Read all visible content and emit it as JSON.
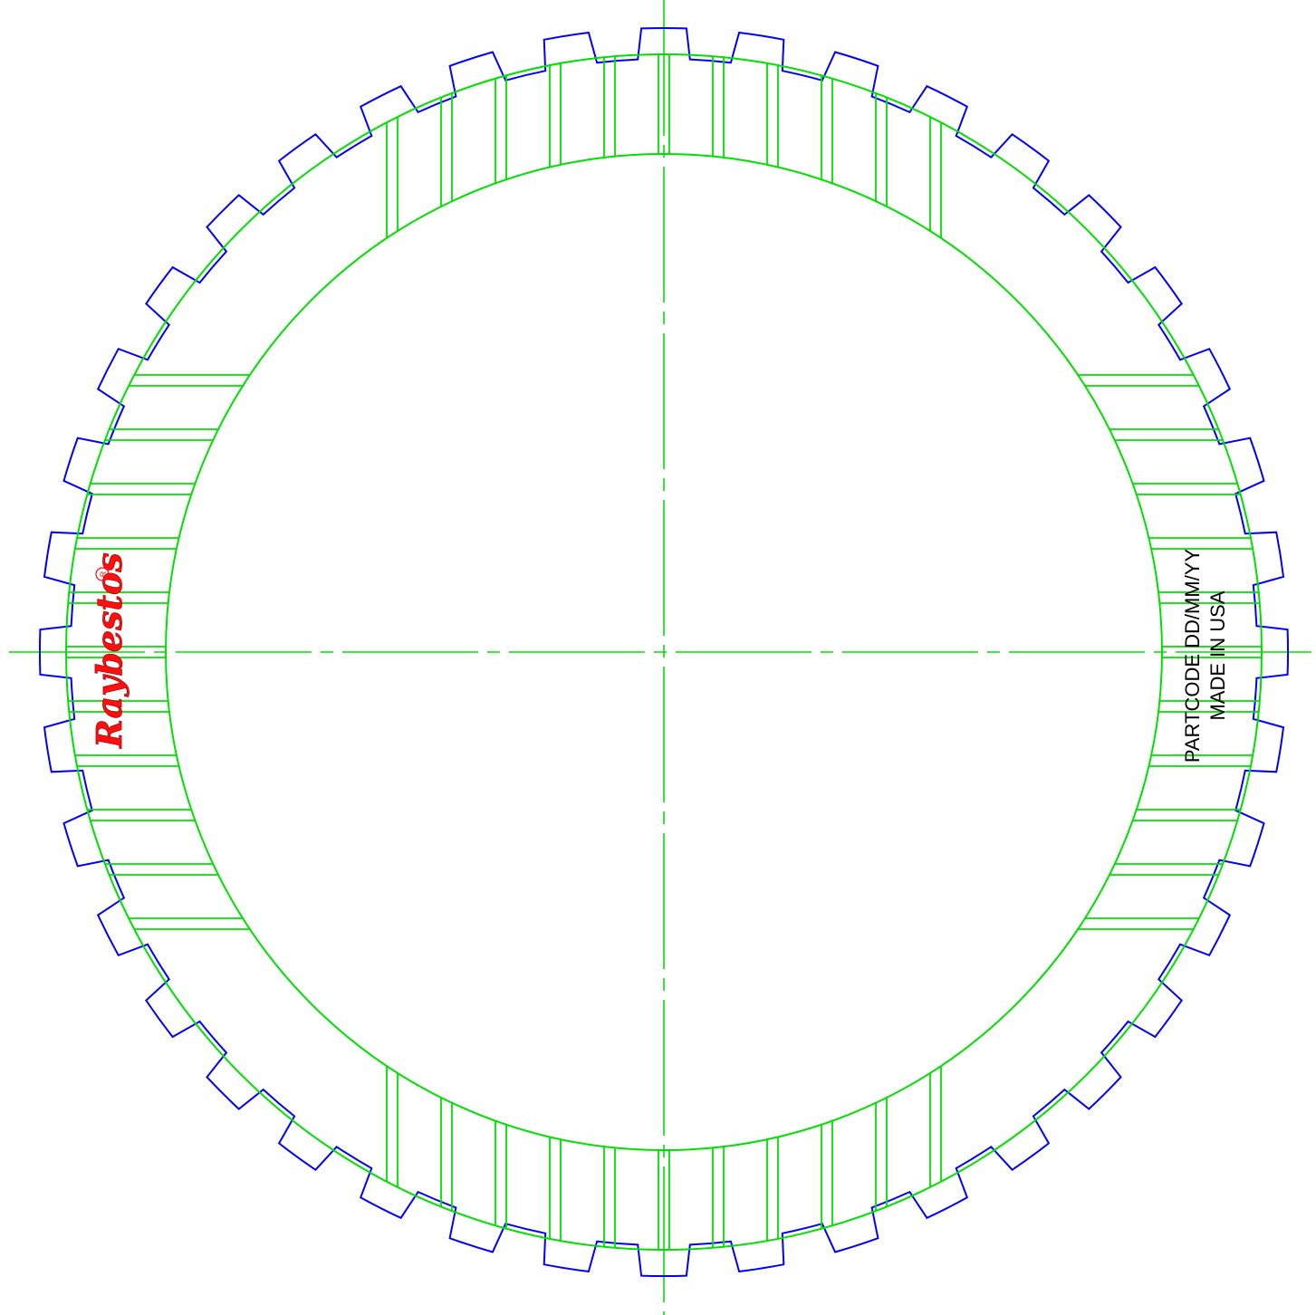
{
  "drawing": {
    "teeth_count": 40,
    "groove_zone_count": 4,
    "colors": {
      "outline": "#0000ff",
      "friction": "#00e000",
      "centerline": "#00e000",
      "logo": "#ff1010",
      "text": "#000000"
    }
  },
  "logo": {
    "text": "Raybestos",
    "registered_mark": "R"
  },
  "marking": {
    "line1": "PARTCODE DD/MM/YY",
    "line2": "MADE IN USA"
  }
}
